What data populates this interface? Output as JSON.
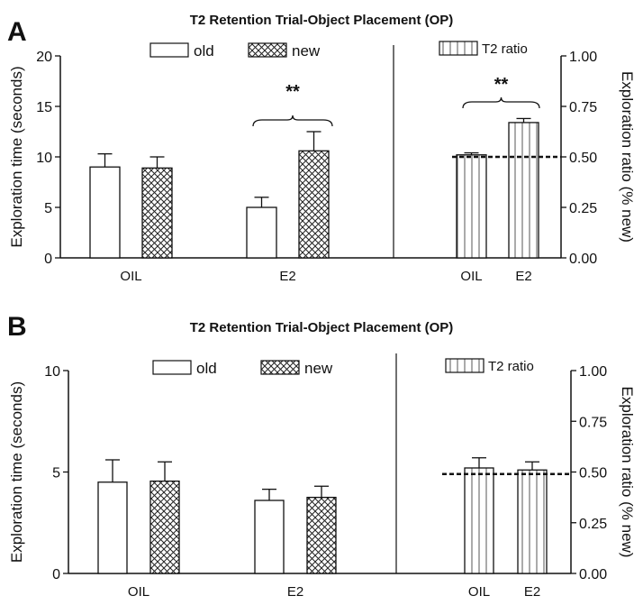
{
  "chart_data": [
    {
      "panel_label": "A",
      "type": "bar",
      "title": "T2 Retention Trial-Object Placement (OP)",
      "left": {
        "ylabel": "Exploration time (seconds)",
        "ylim": [
          0,
          20
        ],
        "yticks": [
          "0",
          "5",
          "10",
          "15",
          "20"
        ],
        "categories": [
          "OIL",
          "E2"
        ],
        "series": [
          {
            "name": "old",
            "values": [
              9.0,
              5.0
            ],
            "errors": [
              1.3,
              1.0
            ]
          },
          {
            "name": "new",
            "values": [
              8.9,
              10.6
            ],
            "errors": [
              1.1,
              1.9
            ]
          }
        ],
        "annotations": [
          {
            "category": "E2",
            "text": "**"
          }
        ]
      },
      "right": {
        "ylabel": "Exploration ratio (% new)",
        "ylim": [
          0,
          1
        ],
        "yticks": [
          "0.00",
          "0.25",
          "0.50",
          "0.75",
          "1.00"
        ],
        "categories": [
          "OIL",
          "E2"
        ],
        "series": [
          {
            "name": "T2 ratio",
            "values": [
              0.51,
              0.67
            ],
            "errors": [
              0.01,
              0.02
            ]
          }
        ],
        "reference_line": 0.5,
        "annotations": [
          {
            "text": "**"
          }
        ]
      }
    },
    {
      "panel_label": "B",
      "type": "bar",
      "title": "T2 Retention Trial-Object Placement (OP)",
      "left": {
        "ylabel": "Exploration time (seconds)",
        "ylim": [
          0,
          10
        ],
        "yticks": [
          "0",
          "5",
          "10"
        ],
        "categories": [
          "OIL",
          "E2"
        ],
        "series": [
          {
            "name": "old",
            "values": [
              4.5,
              3.6
            ],
            "errors": [
              1.1,
              0.55
            ]
          },
          {
            "name": "new",
            "values": [
              4.55,
              3.75
            ],
            "errors": [
              0.95,
              0.55
            ]
          }
        ],
        "annotations": []
      },
      "right": {
        "ylabel": "Exploration ratio (% new)",
        "ylim": [
          0,
          1
        ],
        "yticks": [
          "0.00",
          "0.25",
          "0.50",
          "0.75",
          "1.00"
        ],
        "categories": [
          "OIL",
          "E2"
        ],
        "series": [
          {
            "name": "T2 ratio",
            "values": [
              0.52,
              0.51
            ],
            "errors": [
              0.05,
              0.04
            ]
          }
        ],
        "reference_line": 0.49,
        "annotations": []
      }
    }
  ]
}
